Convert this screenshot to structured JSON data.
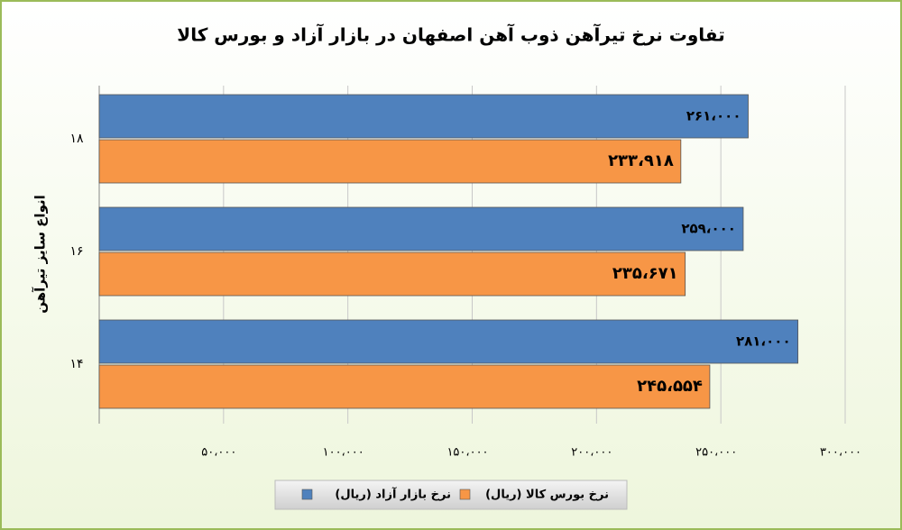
{
  "chart_data": {
    "type": "hbar",
    "title": "تفاوت نرخ تیرآهن ذوب آهن اصفهان در بازار آزاد و بورس کالا",
    "y_label": "انواع سایز تیرآهن",
    "categories": [
      "۱۸",
      "۱۶",
      "۱۴"
    ],
    "series": [
      {
        "name": "نرخ بازار آزاد (ریال)",
        "color": "#4f81bd",
        "values": [
          261000,
          259000,
          281000
        ],
        "value_labels": [
          "۲۶۱،۰۰۰",
          "۲۵۹،۰۰۰",
          "۲۸۱،۰۰۰"
        ]
      },
      {
        "name": "نرخ بورس کالا (ریال)",
        "color": "#f79646",
        "values": [
          233918,
          235671,
          245554
        ],
        "value_labels": [
          "۲۳۳،۹۱۸",
          "۲۳۵،۶۷۱",
          "۲۴۵،۵۵۴"
        ]
      }
    ],
    "xlim": [
      0,
      300000
    ],
    "xticks": [
      {
        "value": 50000,
        "label": "۵۰،۰۰۰"
      },
      {
        "value": 100000,
        "label": "۱۰۰،۰۰۰"
      },
      {
        "value": 150000,
        "label": "۱۵۰،۰۰۰"
      },
      {
        "value": 200000,
        "label": "۲۰۰،۰۰۰"
      },
      {
        "value": 250000,
        "label": "۲۵۰،۰۰۰"
      },
      {
        "value": 300000,
        "label": "۳۰۰،۰۰۰"
      }
    ],
    "grid": true
  }
}
